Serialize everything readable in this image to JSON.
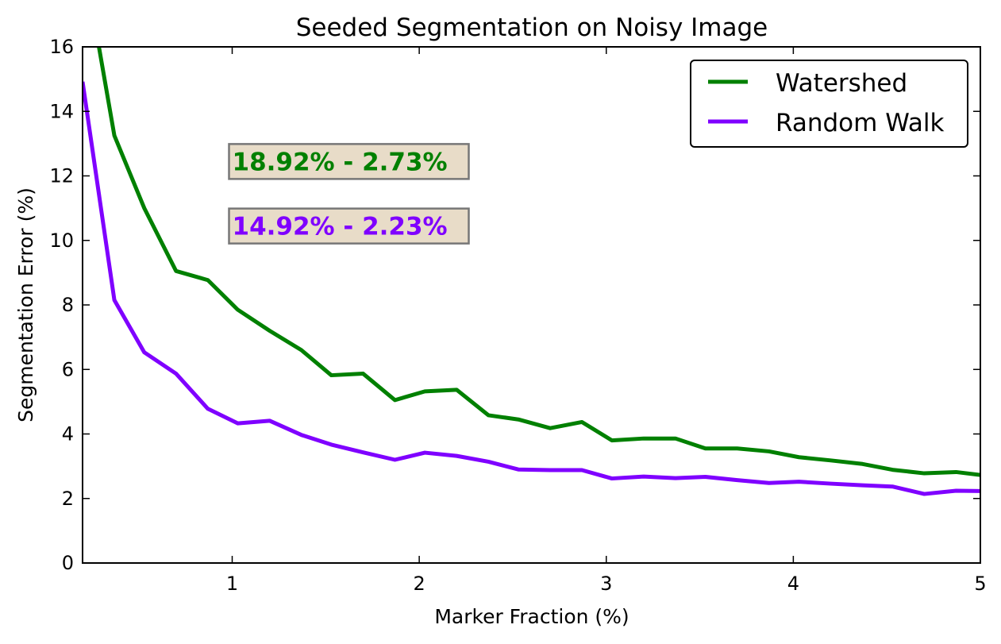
{
  "chart_data": {
    "type": "line",
    "title": "Seeded Segmentation on Noisy Image",
    "xlabel": "Marker Fraction (%)",
    "ylabel": "Segmentation Error (%)",
    "xlim": [
      0.2,
      5
    ],
    "ylim": [
      0,
      16
    ],
    "xticks": [
      1,
      2,
      3,
      4,
      5
    ],
    "yticks": [
      0,
      2,
      4,
      6,
      8,
      10,
      12,
      14,
      16
    ],
    "grid": false,
    "legend_position": "top-right",
    "x": [
      0.2,
      0.37,
      0.53,
      0.7,
      0.87,
      1.03,
      1.2,
      1.37,
      1.53,
      1.7,
      1.87,
      2.03,
      2.2,
      2.37,
      2.53,
      2.7,
      2.87,
      3.03,
      3.2,
      3.37,
      3.53,
      3.7,
      3.87,
      4.03,
      4.2,
      4.37,
      4.53,
      4.7,
      4.87,
      5.0
    ],
    "series": [
      {
        "name": "Watershed",
        "color": "#008000",
        "values": [
          18.92,
          13.25,
          11.0,
          9.05,
          8.77,
          7.85,
          7.2,
          6.6,
          5.82,
          5.87,
          5.05,
          5.32,
          5.37,
          4.58,
          4.45,
          4.18,
          4.37,
          3.8,
          3.86,
          3.86,
          3.55,
          3.55,
          3.46,
          3.28,
          3.18,
          3.07,
          2.89,
          2.78,
          2.82,
          2.73
        ]
      },
      {
        "name": "Random Walk",
        "color": "#7f00ff",
        "values": [
          14.92,
          8.15,
          6.53,
          5.87,
          4.78,
          4.33,
          4.41,
          3.97,
          3.67,
          3.43,
          3.2,
          3.42,
          3.32,
          3.14,
          2.9,
          2.88,
          2.88,
          2.62,
          2.68,
          2.63,
          2.67,
          2.57,
          2.48,
          2.52,
          2.46,
          2.41,
          2.37,
          2.14,
          2.24,
          2.23
        ]
      }
    ],
    "annotations": [
      {
        "text": "18.92% - 2.73%",
        "color": "#008000",
        "x": 1.0,
        "y": 12.2
      },
      {
        "text": "14.92% - 2.23%",
        "color": "#7f00ff",
        "x": 1.0,
        "y": 10.2
      }
    ],
    "annotation_box_color": "#e8dcc8"
  }
}
